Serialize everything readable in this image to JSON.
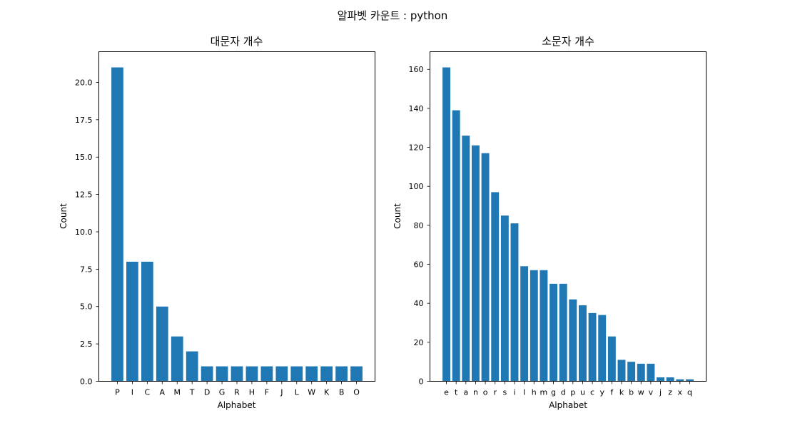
{
  "figure": {
    "suptitle": "알파벳 카운트 : python"
  },
  "chart_data": [
    {
      "type": "bar",
      "title": "대문자 개수",
      "xlabel": "Alphabet",
      "ylabel": "Count",
      "categories": [
        "P",
        "I",
        "C",
        "A",
        "M",
        "T",
        "D",
        "G",
        "R",
        "H",
        "F",
        "J",
        "L",
        "W",
        "K",
        "B",
        "O"
      ],
      "values": [
        21,
        8,
        8,
        5,
        3,
        2,
        1,
        1,
        1,
        1,
        1,
        1,
        1,
        1,
        1,
        1,
        1
      ],
      "ylim": [
        0,
        22.05
      ],
      "yticks": [
        0,
        2.5,
        5,
        7.5,
        10,
        12.5,
        15,
        17.5,
        20
      ],
      "ytick_labels": [
        "0.0",
        "2.5",
        "5.0",
        "7.5",
        "10.0",
        "12.5",
        "15.0",
        "17.5",
        "20.0"
      ],
      "color": "#1f77b4",
      "grid": false
    },
    {
      "type": "bar",
      "title": "소문자 개수",
      "xlabel": "Alphabet",
      "ylabel": "Count",
      "categories": [
        "e",
        "t",
        "a",
        "n",
        "o",
        "r",
        "s",
        "i",
        "l",
        "h",
        "m",
        "g",
        "d",
        "p",
        "u",
        "c",
        "y",
        "f",
        "k",
        "b",
        "w",
        "v",
        "j",
        "z",
        "x",
        "q"
      ],
      "values": [
        161,
        139,
        126,
        121,
        117,
        97,
        85,
        81,
        59,
        57,
        57,
        50,
        50,
        42,
        39,
        35,
        34,
        23,
        11,
        10,
        9,
        9,
        2,
        2,
        1,
        1
      ],
      "ylim": [
        0,
        169.05
      ],
      "yticks": [
        0,
        20,
        40,
        60,
        80,
        100,
        120,
        140,
        160
      ],
      "ytick_labels": [
        "0",
        "20",
        "40",
        "60",
        "80",
        "100",
        "120",
        "140",
        "160"
      ],
      "color": "#1f77b4",
      "grid": false
    }
  ]
}
